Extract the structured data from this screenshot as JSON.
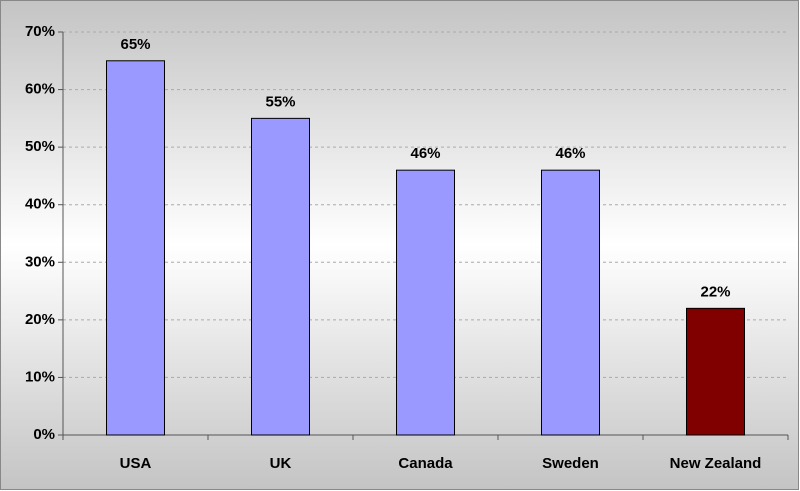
{
  "chart_data": {
    "type": "bar",
    "categories": [
      "USA",
      "UK",
      "Canada",
      "Sweden",
      "New Zealand"
    ],
    "values": [
      65,
      55,
      46,
      46,
      22
    ],
    "value_labels": [
      "65%",
      "55%",
      "46%",
      "46%",
      "22%"
    ],
    "colors": [
      "#9999ff",
      "#9999ff",
      "#9999ff",
      "#9999ff",
      "#800000"
    ],
    "ylim": [
      0,
      70
    ],
    "yticks": [
      {
        "value": 0,
        "label": "0%"
      },
      {
        "value": 10,
        "label": "10%"
      },
      {
        "value": 20,
        "label": "20%"
      },
      {
        "value": 30,
        "label": "30%"
      },
      {
        "value": 40,
        "label": "40%"
      },
      {
        "value": 50,
        "label": "50%"
      },
      {
        "value": 60,
        "label": "60%"
      },
      {
        "value": 70,
        "label": "70%"
      }
    ],
    "grid": true
  }
}
